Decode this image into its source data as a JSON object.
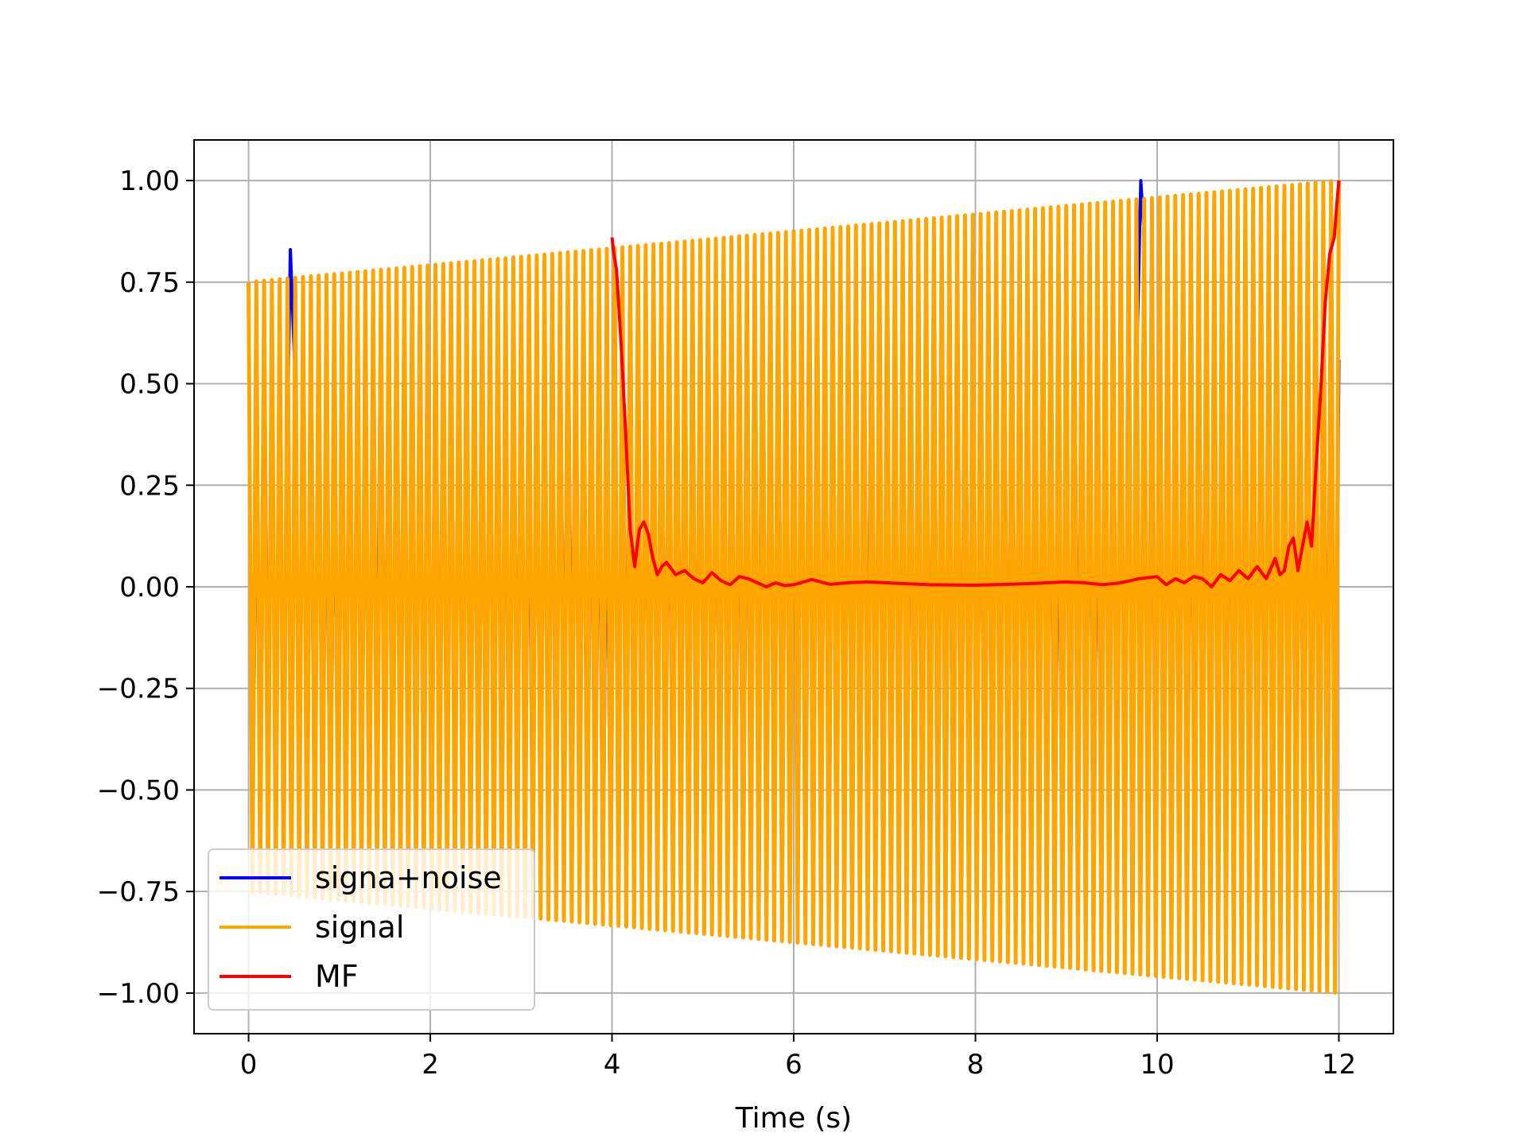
{
  "chart_data": {
    "type": "line",
    "title": "",
    "xlabel": "Time (s)",
    "ylabel": "",
    "xlim": [
      -0.6,
      12.6
    ],
    "ylim": [
      -1.1,
      1.1
    ],
    "xticks": [
      0,
      2,
      4,
      6,
      8,
      10,
      12
    ],
    "xtick_labels": [
      "0",
      "2",
      "4",
      "6",
      "8",
      "10",
      "12"
    ],
    "yticks": [
      1.0,
      0.75,
      0.5,
      0.25,
      0.0,
      -0.25,
      -0.5,
      -0.75,
      -1.0
    ],
    "ytick_labels": [
      "1.00",
      "0.75",
      "0.50",
      "0.25",
      "0.00",
      "−0.25",
      "−0.50",
      "−0.75",
      "−1.00"
    ],
    "grid": true,
    "legend_position": "lower-left",
    "series": [
      {
        "name": "signa+noise",
        "color": "#0000ff",
        "kind": "noisy-chirp",
        "x_range": [
          0,
          12
        ],
        "envelope_start": 0.75,
        "envelope_end": 1.0,
        "cycles": 140,
        "peaks": [
          {
            "x": 0.46,
            "y": 0.83
          },
          {
            "x": 9.82,
            "y": 1.0
          }
        ]
      },
      {
        "name": "signal",
        "color": "#ffa500",
        "kind": "chirp",
        "x_range": [
          0,
          12
        ],
        "envelope_start": 0.75,
        "envelope_end": 1.0,
        "cycles": 140
      },
      {
        "name": "MF",
        "color": "#ff0000",
        "kind": "line",
        "x": [
          4.0,
          4.02,
          4.05,
          4.1,
          4.15,
          4.2,
          4.25,
          4.3,
          4.35,
          4.4,
          4.45,
          4.5,
          4.55,
          4.6,
          4.7,
          4.8,
          4.9,
          5.0,
          5.1,
          5.2,
          5.3,
          5.4,
          5.5,
          5.6,
          5.7,
          5.8,
          5.9,
          6.0,
          6.2,
          6.4,
          6.6,
          6.8,
          7.0,
          7.5,
          8.0,
          8.5,
          9.0,
          9.2,
          9.4,
          9.6,
          9.8,
          10.0,
          10.1,
          10.2,
          10.3,
          10.4,
          10.5,
          10.6,
          10.7,
          10.8,
          10.9,
          11.0,
          11.1,
          11.2,
          11.3,
          11.35,
          11.4,
          11.45,
          11.5,
          11.55,
          11.6,
          11.65,
          11.7,
          11.75,
          11.8,
          11.85,
          11.9,
          11.95,
          11.98,
          12.0
        ],
        "y": [
          0.86,
          0.82,
          0.78,
          0.6,
          0.38,
          0.14,
          0.05,
          0.14,
          0.16,
          0.13,
          0.07,
          0.03,
          0.05,
          0.06,
          0.03,
          0.04,
          0.02,
          0.01,
          0.035,
          0.015,
          0.005,
          0.025,
          0.02,
          0.01,
          0.0,
          0.01,
          0.003,
          0.005,
          0.018,
          0.006,
          0.01,
          0.012,
          0.01,
          0.005,
          0.004,
          0.007,
          0.012,
          0.01,
          0.005,
          0.01,
          0.02,
          0.025,
          0.005,
          0.02,
          0.01,
          0.025,
          0.02,
          0.0,
          0.03,
          0.015,
          0.04,
          0.02,
          0.05,
          0.02,
          0.07,
          0.03,
          0.04,
          0.1,
          0.12,
          0.04,
          0.1,
          0.16,
          0.1,
          0.3,
          0.48,
          0.7,
          0.82,
          0.86,
          0.95,
          1.0
        ]
      }
    ]
  }
}
